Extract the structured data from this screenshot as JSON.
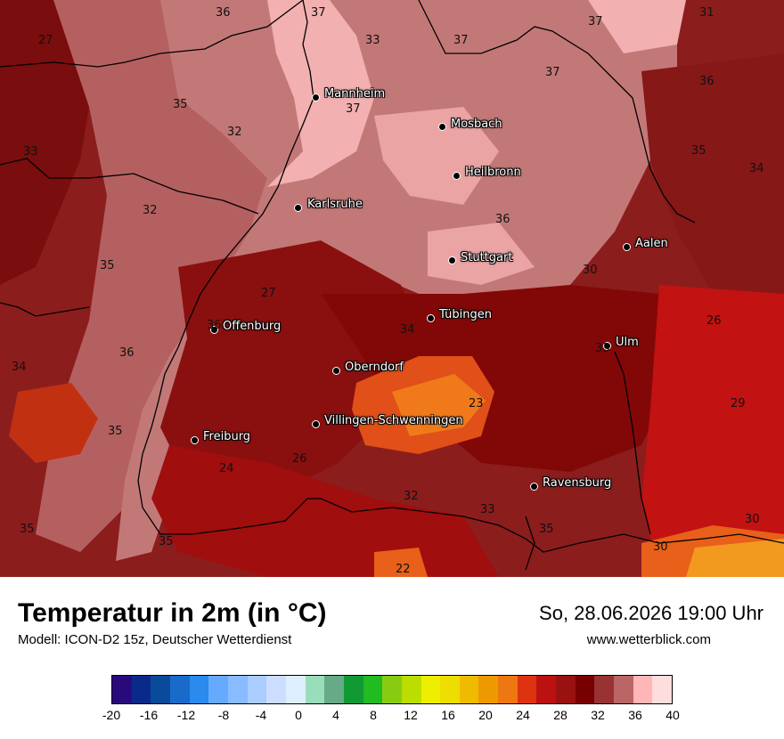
{
  "map": {
    "cities": [
      {
        "name": "Mannheim"
      },
      {
        "name": "Mosbach"
      },
      {
        "name": "Heilbronn"
      },
      {
        "name": "Karlsruhe"
      },
      {
        "name": "Stuttgart"
      },
      {
        "name": "Aalen"
      },
      {
        "name": "Tübingen"
      },
      {
        "name": "Offenburg"
      },
      {
        "name": "Ulm"
      },
      {
        "name": "Oberndorf"
      },
      {
        "name": "Villingen-Schwenningen"
      },
      {
        "name": "Freiburg"
      },
      {
        "name": "Ravensburg"
      }
    ],
    "values": [
      "36",
      "37",
      "27",
      "33",
      "37",
      "37",
      "31",
      "37",
      "35",
      "37",
      "36",
      "32",
      "33",
      "35",
      "34",
      "32",
      "36",
      "35",
      "30",
      "27",
      "36",
      "34",
      "26",
      "34",
      "36",
      "33",
      "23",
      "29",
      "35",
      "26",
      "24",
      "32",
      "33",
      "35",
      "30",
      "35",
      "35",
      "22"
    ]
  },
  "footer": {
    "title": "Temperatur in 2m (in °C)",
    "subtitle": "Modell: ICON-D2 15z, Deutscher Wetterdienst",
    "datetime": "So, 28.06.2026 19:00 Uhr",
    "website": "www.wetterblick.com"
  },
  "legend": {
    "colors": [
      "#2a0a7a",
      "#0a2a8a",
      "#0a4a9a",
      "#1a6acc",
      "#2a8aee",
      "#66aaff",
      "#88bbff",
      "#aaccff",
      "#ccddff",
      "#ddeeff",
      "#99ddbb",
      "#66aa88",
      "#119933",
      "#22bb22",
      "#88cc11",
      "#bbdd00",
      "#eeee00",
      "#eedd00",
      "#eebb00",
      "#ee9900",
      "#ee7711",
      "#dd3311",
      "#bb1111",
      "#991111",
      "#770000",
      "#993333",
      "#bb6666",
      "#ffb6b6",
      "#ffdddd"
    ],
    "ticks": [
      "-20",
      "-16",
      "-12",
      "-8",
      "-4",
      "0",
      "4",
      "8",
      "12",
      "16",
      "20",
      "24",
      "28",
      "32",
      "36",
      "40"
    ]
  }
}
